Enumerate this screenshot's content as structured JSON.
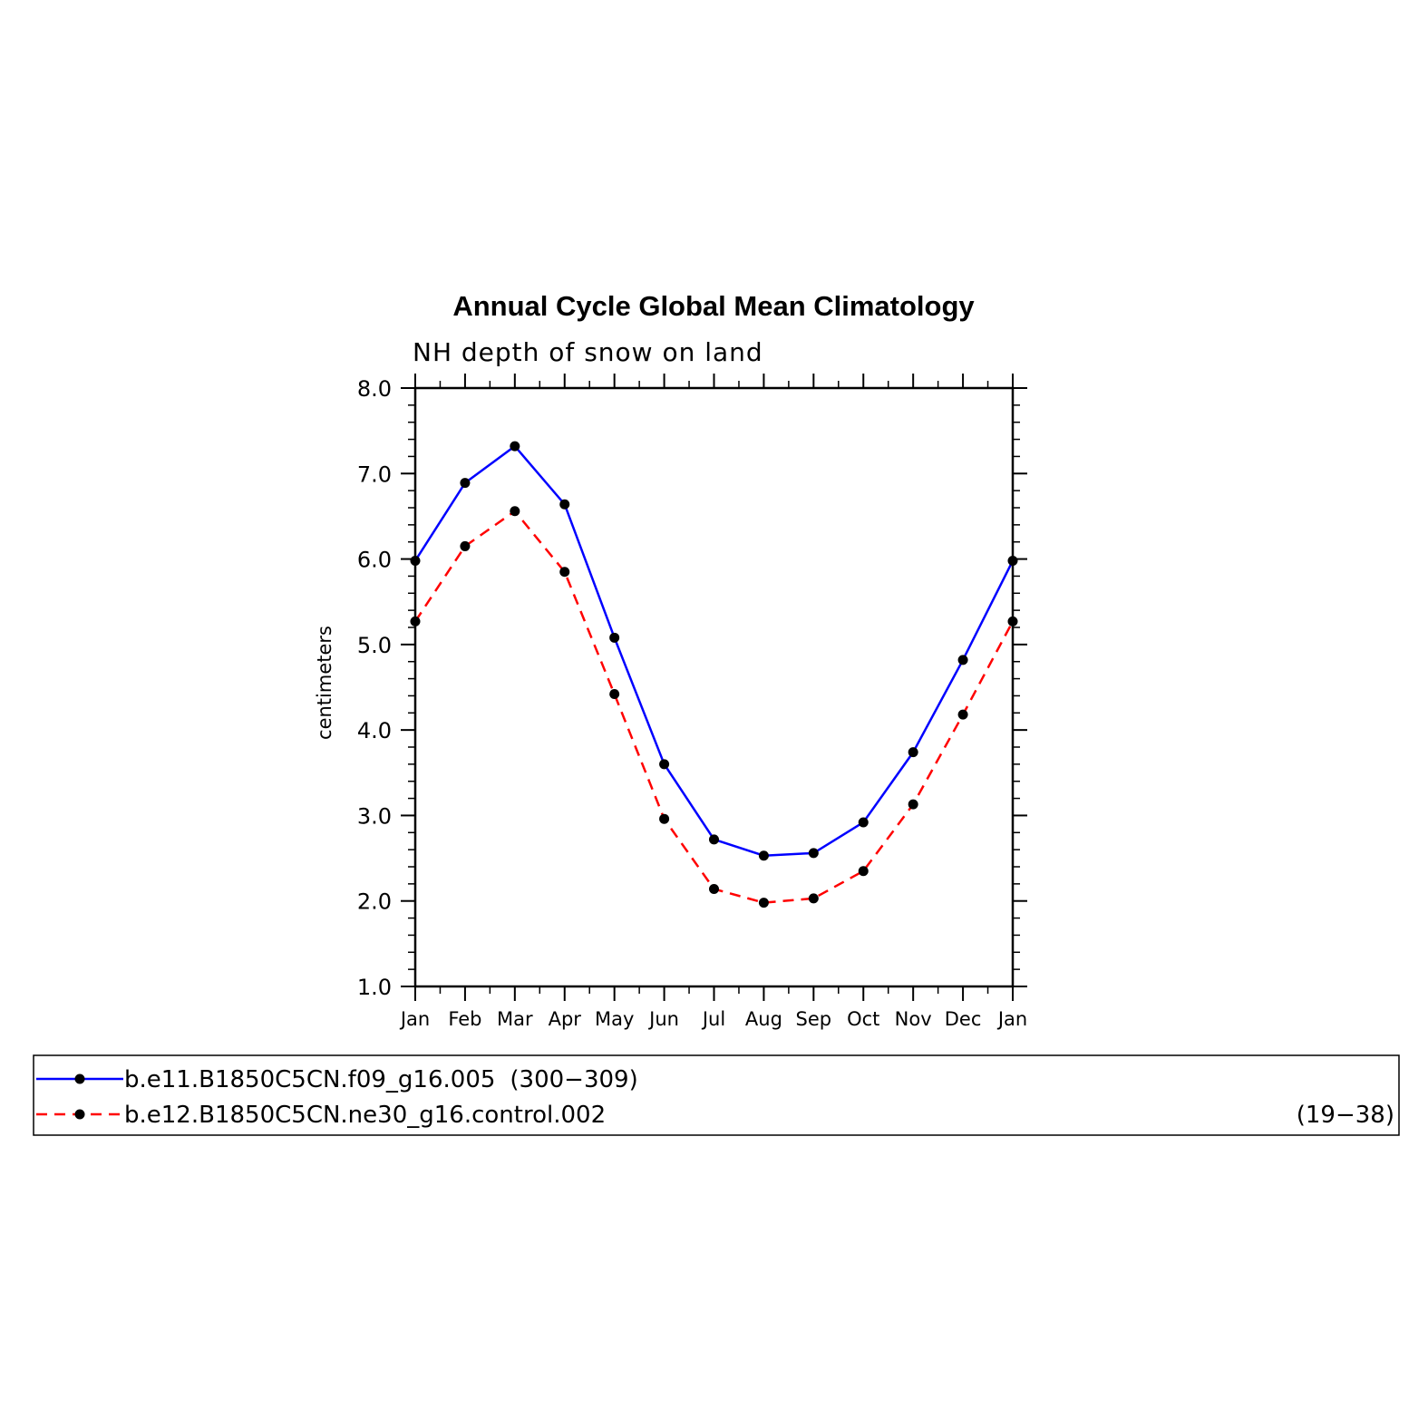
{
  "chart_data": {
    "type": "line",
    "title": "Annual Cycle Global Mean Climatology",
    "subtitle": "NH depth of snow on land",
    "xlabel": "",
    "ylabel": "centimeters",
    "categories": [
      "Jan",
      "Feb",
      "Mar",
      "Apr",
      "May",
      "Jun",
      "Jul",
      "Aug",
      "Sep",
      "Oct",
      "Nov",
      "Dec",
      "Jan"
    ],
    "ylim": [
      1.0,
      8.0
    ],
    "yticks": [
      "1.0",
      "2.0",
      "3.0",
      "4.0",
      "5.0",
      "6.0",
      "7.0",
      "8.0"
    ],
    "grid": false,
    "legend_position": "bottom",
    "series": [
      {
        "name": "b.e11.B1850C5CN.f09_g16.005",
        "years": "(300−309)",
        "color": "#0000ff",
        "dash": "solid",
        "marker_color": "#000000",
        "values": [
          5.98,
          6.89,
          7.32,
          6.64,
          5.08,
          3.6,
          2.72,
          2.53,
          2.56,
          2.92,
          3.74,
          4.82,
          5.98
        ]
      },
      {
        "name": "b.e12.B1850C5CN.ne30_g16.control.002",
        "years": "(19−38)",
        "color": "#ff0000",
        "dash": "dashed",
        "marker_color": "#000000",
        "values": [
          5.27,
          6.15,
          6.56,
          5.85,
          4.42,
          2.96,
          2.14,
          1.98,
          2.03,
          2.35,
          3.13,
          4.18,
          5.27
        ]
      }
    ]
  }
}
